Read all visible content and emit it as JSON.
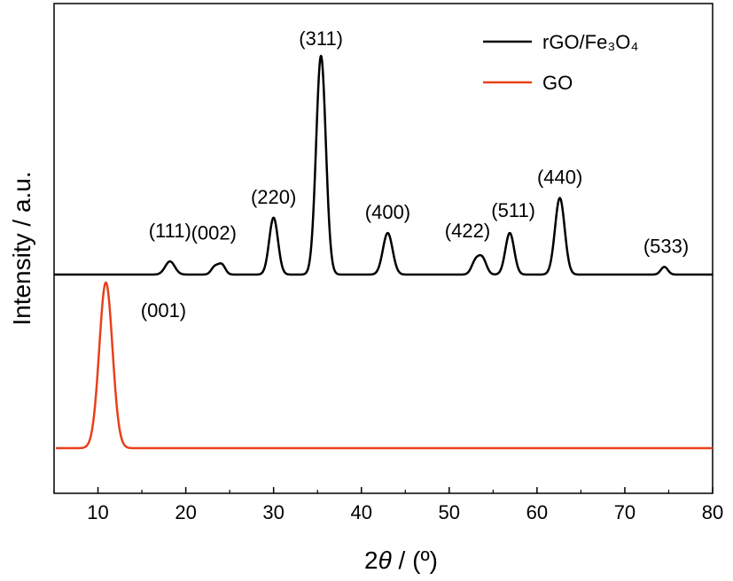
{
  "chart_data": {
    "type": "line",
    "title": "",
    "xlabel_prefix": "2",
    "xlabel_symbol": "θ",
    "xlabel_suffix": " / (º)",
    "ylabel": "Intensity / a.u.",
    "xlim": [
      5,
      80
    ],
    "xticks": [
      10,
      20,
      30,
      40,
      50,
      60,
      70,
      80
    ],
    "yticks_shown": false,
    "grid": false,
    "legend_position": "top-right",
    "series": [
      {
        "name": "rGO/Fe₃O₄",
        "color": "#000000",
        "baseline": 0,
        "peaks": [
          {
            "x": 18.2,
            "height": 0.06,
            "width": 0.55
          },
          {
            "x": 23.3,
            "height": 0.035,
            "width": 0.4
          },
          {
            "x": 24.1,
            "height": 0.045,
            "width": 0.4
          },
          {
            "x": 30.0,
            "height": 0.26,
            "width": 0.5
          },
          {
            "x": 35.4,
            "height": 1.0,
            "width": 0.55
          },
          {
            "x": 43.0,
            "height": 0.19,
            "width": 0.55
          },
          {
            "x": 53.0,
            "height": 0.06,
            "width": 0.45
          },
          {
            "x": 53.8,
            "height": 0.07,
            "width": 0.45
          },
          {
            "x": 56.9,
            "height": 0.19,
            "width": 0.5
          },
          {
            "x": 62.6,
            "height": 0.35,
            "width": 0.55
          },
          {
            "x": 74.5,
            "height": 0.035,
            "width": 0.4
          }
        ],
        "peak_labels": [
          {
            "text": "(111)",
            "x": 18.2
          },
          {
            "text": "(002)",
            "x": 23.8
          },
          {
            "text": "(220)",
            "x": 30.0
          },
          {
            "text": "(311)",
            "x": 35.4
          },
          {
            "text": "(400)",
            "x": 43.0
          },
          {
            "text": "(422)",
            "x": 53.5
          },
          {
            "text": "(511)",
            "x": 56.9
          },
          {
            "text": "(440)",
            "x": 62.6
          },
          {
            "text": "(533)",
            "x": 74.5
          }
        ]
      },
      {
        "name": "GO",
        "color": "#e8401c",
        "baseline": 0,
        "peaks": [
          {
            "x": 10.9,
            "height": 1.0,
            "width": 0.75
          }
        ],
        "peak_labels": [
          {
            "text": "(001)",
            "x": 10.9
          }
        ]
      }
    ]
  }
}
